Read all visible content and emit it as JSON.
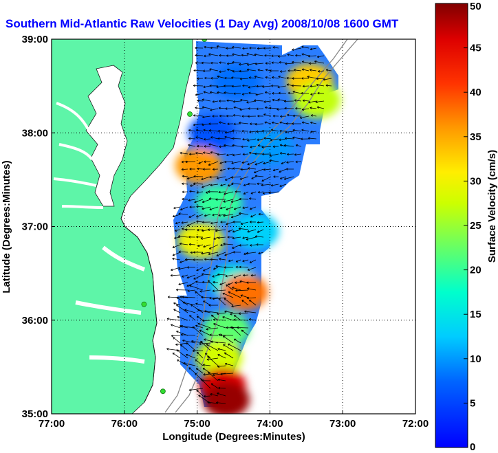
{
  "chart_data": {
    "type": "heatmap",
    "title": "Southern Mid-Atlantic Raw Velocities (1 Day Avg) 2008/10/08 1600 GMT",
    "xlabel": "Longitude (Degrees:Minutes)",
    "ylabel": "Latitude (Degrees:Minutes)",
    "colorbar_label": "Surface Velocity (cm/s)",
    "x_ticks": [
      "77:00",
      "76:00",
      "75:00",
      "74:00",
      "73:00",
      "72:00"
    ],
    "x_tick_values": [
      -77,
      -76,
      -75,
      -74,
      -73,
      -72
    ],
    "y_ticks": [
      "39:00",
      "38:00",
      "37:00",
      "36:00",
      "35:00"
    ],
    "y_tick_values": [
      39,
      38,
      37,
      36,
      35
    ],
    "xlim": [
      -77,
      -72
    ],
    "ylim": [
      35,
      39
    ],
    "colorbar_range": [
      0,
      50
    ],
    "colorbar_ticks": [
      "0",
      "5",
      "10",
      "15",
      "20",
      "25",
      "30",
      "35",
      "40",
      "45",
      "50"
    ],
    "colormap": "jet",
    "grid": "dotted",
    "colors": {
      "land": "#5ef5a8",
      "ocean": "#ffffff",
      "title": "#0000ff",
      "arrows": "#000000",
      "stations": "#33dd33"
    },
    "velocity_regions": [
      {
        "lon": -74.45,
        "lat": 38.55,
        "speed": 8
      },
      {
        "lon": -74.8,
        "lat": 38.0,
        "speed": 6
      },
      {
        "lon": -74.0,
        "lat": 37.85,
        "speed": 10
      },
      {
        "lon": -73.45,
        "lat": 38.55,
        "speed": 33
      },
      {
        "lon": -73.35,
        "lat": 38.35,
        "speed": 27
      },
      {
        "lon": -74.98,
        "lat": 37.65,
        "speed": 36
      },
      {
        "lon": -74.7,
        "lat": 37.25,
        "speed": 20
      },
      {
        "lon": -74.95,
        "lat": 36.85,
        "speed": 30
      },
      {
        "lon": -74.2,
        "lat": 36.95,
        "speed": 13
      },
      {
        "lon": -74.5,
        "lat": 36.4,
        "speed": 16
      },
      {
        "lon": -74.35,
        "lat": 36.3,
        "speed": 38
      },
      {
        "lon": -74.6,
        "lat": 35.9,
        "speed": 22
      },
      {
        "lon": -74.7,
        "lat": 35.6,
        "speed": 28
      },
      {
        "lon": -74.65,
        "lat": 35.3,
        "speed": 46
      },
      {
        "lon": -74.6,
        "lat": 35.15,
        "speed": 49
      }
    ],
    "stations": [
      {
        "lon": -74.9,
        "lat": 39.0
      },
      {
        "lon": -75.1,
        "lat": 38.2
      },
      {
        "lon": -75.73,
        "lat": 36.17
      },
      {
        "lon": -75.47,
        "lat": 35.24
      }
    ]
  }
}
